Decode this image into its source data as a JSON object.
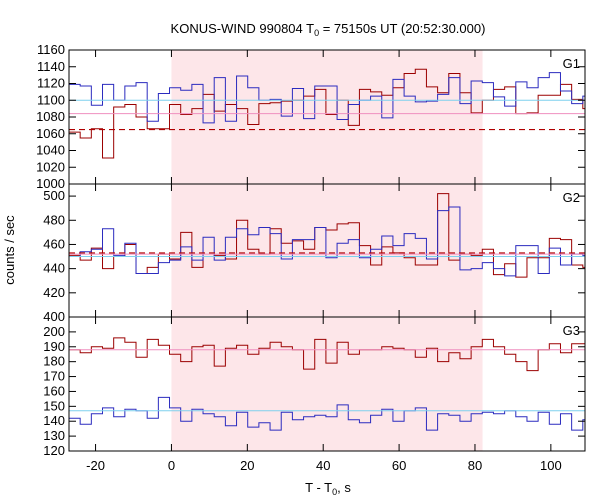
{
  "chart_data": {
    "type": "line",
    "title_main": "KONUS-WIND 990804 T",
    "title_sub": "0",
    "title_rest": " = 75150s UT (20:52:30.000)",
    "xlabel_main": "T - T",
    "xlabel_sub": "0",
    "xlabel_rest": ", s",
    "ylabel": "counts / sec",
    "xlim": [
      -27,
      109
    ],
    "xticks": [
      -20,
      0,
      20,
      40,
      60,
      80,
      100
    ],
    "shaded_interval": [
      0,
      82
    ],
    "colors": {
      "shade": "#fde6e9",
      "frame": "#000000",
      "series_red": "#9b0000",
      "series_blue": "#2b2bbf",
      "bg_red": "#ef8fbf",
      "bg_blue": "#7fd0ee",
      "dashed": "#b00000"
    },
    "panels": [
      {
        "label": "G1",
        "ylim": [
          1000,
          1160
        ],
        "yticks": [
          1000,
          1020,
          1040,
          1060,
          1080,
          1100,
          1120,
          1140,
          1160
        ],
        "x_start": -27,
        "bin": 2.944,
        "series": [
          {
            "color": "series_red",
            "values": [
              1062,
              1055,
              1066,
              1031,
              1092,
              1095,
              1080,
              1066,
              1066,
              1095,
              1083,
              1090,
              1107,
              1087,
              1095,
              1090,
              1071,
              1096,
              1097,
              1099,
              1100,
              1105,
              1113,
              1083,
              1100,
              1070,
              1113,
              1110,
              1106,
              1115,
              1132,
              1137,
              1116,
              1109,
              1132,
              1109,
              1085,
              1100,
              1113,
              1116,
              1084,
              1085,
              1106,
              1106,
              1119,
              1101,
              1090,
              1097,
              1091,
              1076,
              1081,
              1055,
              1070,
              1091,
              1084,
              1089,
              1067,
              1090,
              1089,
              1078,
              1064,
              1061,
              1082,
              1078,
              1083,
              1079,
              1082,
              1090,
              1084,
              1082,
              1078,
              1083,
              1082,
              1083,
              1080
            ]
          },
          {
            "color": "series_blue",
            "values": [
              1119,
              1117,
              1094,
              1119,
              1100,
              1117,
              1121,
              1075,
              1108,
              1115,
              1112,
              1119,
              1073,
              1127,
              1075,
              1129,
              1115,
              1100,
              1101,
              1081,
              1114,
              1078,
              1117,
              1117,
              1077,
              1095,
              1100,
              1105,
              1079,
              1125,
              1105,
              1098,
              1099,
              1107,
              1127,
              1096,
              1123,
              1121,
              1104,
              1093,
              1122,
              1115,
              1127,
              1133,
              1111,
              1096,
              1105,
              1102,
              1116,
              1123,
              1101,
              1130,
              1110,
              1118,
              1081,
              1102,
              1096,
              1105,
              1122,
              1119,
              1101,
              1087,
              1089,
              1115,
              1081,
              1100,
              1084,
              1109,
              1095,
              1118,
              1106,
              1081,
              1104,
              1100
            ]
          },
          {
            "color": "bg_blue",
            "values": [
              1100,
              1100
            ]
          },
          {
            "color": "bg_red",
            "values": [
              1084,
              1084
            ]
          },
          {
            "color": "dashed",
            "values": [
              1065,
              1065
            ]
          }
        ]
      },
      {
        "label": "G2",
        "ylim": [
          400,
          510
        ],
        "yticks": [
          400,
          420,
          440,
          460,
          480,
          500
        ],
        "x_start": -27,
        "bin": 2.944,
        "series": [
          {
            "color": "series_red",
            "values": [
              451,
              447,
              457,
              440,
              450,
              460,
              436,
              441,
              452,
              448,
              470,
              441,
              450,
              451,
              448,
              480,
              456,
              452,
              473,
              461,
              463,
              456,
              474,
              472,
              477,
              478,
              459,
              443,
              458,
              453,
              449,
              443,
              443,
              502,
              447,
              452,
              451,
              456,
              435,
              444,
              433,
              449,
              449,
              465,
              464,
              443,
              441,
              447,
              446,
              458,
              456,
              435,
              468,
              436,
              440,
              444,
              452,
              460,
              449,
              441,
              458,
              456,
              453,
              470,
              473,
              448,
              468,
              451,
              439,
              436,
              442,
              449,
              460,
              443,
              478,
              460
            ]
          },
          {
            "color": "series_blue",
            "values": [
              450,
              454,
              456,
              473,
              451,
              461,
              436,
              436,
              445,
              447,
              458,
              447,
              466,
              447,
              466,
              473,
              468,
              474,
              469,
              448,
              464,
              464,
              474,
              449,
              461,
              464,
              449,
              456,
              467,
              459,
              469,
              465,
              448,
              488,
              491,
              439,
              440,
              445,
              440,
              434,
              459,
              459,
              436,
              457,
              443,
              452,
              451,
              462,
              441,
              450,
              453,
              458,
              425,
              445,
              430,
              459,
              451,
              436,
              442,
              451,
              460,
              449,
              437,
              424,
              437,
              449,
              432,
              455,
              420,
              436,
              474,
              449,
              445,
              450,
              463
            ]
          },
          {
            "color": "bg_blue",
            "values": [
              450,
              450
            ]
          },
          {
            "color": "bg_red",
            "values": [
              452,
              452
            ]
          },
          {
            "color": "dashed",
            "values": [
              453,
              453
            ]
          }
        ]
      },
      {
        "label": "G3",
        "ylim": [
          120,
          210
        ],
        "yticks": [
          120,
          130,
          140,
          150,
          160,
          170,
          180,
          190,
          200
        ],
        "x_start": -27,
        "bin": 2.944,
        "series": [
          {
            "color": "series_red",
            "values": [
              188,
              186,
              190,
              189,
              196,
              193,
              183,
              195,
              191,
              185,
              180,
              190,
              191,
              177,
              189,
              191,
              185,
              189,
              193,
              190,
              188,
              175,
              195,
              179,
              193,
              185,
              188,
              188,
              190,
              189,
              188,
              183,
              189,
              180,
              186,
              182,
              190,
              195,
              190,
              185,
              180,
              174,
              188,
              192,
              186,
              192,
              192,
              185,
              187,
              184,
              199,
              186,
              193,
              180,
              193,
              198,
              180,
              175,
              190,
              179,
              194,
              186,
              190,
              192,
              180,
              191,
              185,
              180,
              201,
              199,
              185,
              191,
              188,
              195,
              200,
              186,
              185,
              180,
              183,
              199
            ]
          },
          {
            "color": "series_blue",
            "values": [
              142,
              138,
              145,
              149,
              143,
              148,
              147,
              142,
              156,
              149,
              140,
              148,
              145,
              143,
              137,
              146,
              136,
              139,
              134,
              146,
              141,
              143,
              144,
              143,
              151,
              141,
              139,
              144,
              148,
              140,
              147,
              149,
              134,
              145,
              144,
              140,
              145,
              146,
              145,
              147,
              143,
              140,
              146,
              138,
              145,
              134,
              141,
              146,
              139,
              141,
              155,
              147,
              143,
              152,
              149,
              144,
              153,
              161,
              150,
              147,
              145,
              147,
              137,
              139,
              149,
              141,
              142,
              149,
              151,
              145,
              144,
              155
            ]
          },
          {
            "color": "bg_blue",
            "values": [
              147,
              147
            ]
          },
          {
            "color": "bg_red",
            "values": [
              188,
              188
            ]
          }
        ]
      }
    ]
  }
}
